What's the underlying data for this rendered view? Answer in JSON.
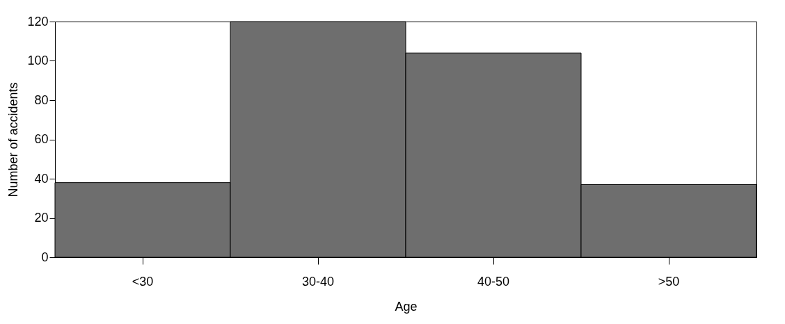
{
  "chart_data": {
    "type": "bar",
    "xlabel": "Age",
    "ylabel": "Number of accidents",
    "categories": [
      "<30",
      "30-40",
      "40-50",
      ">50"
    ],
    "values": [
      38,
      120,
      104,
      37
    ],
    "color": "#6e6e6e",
    "ylim": [
      0,
      120
    ],
    "yticks": [
      0,
      20,
      40,
      60,
      80,
      100,
      120
    ],
    "grid": false
  }
}
